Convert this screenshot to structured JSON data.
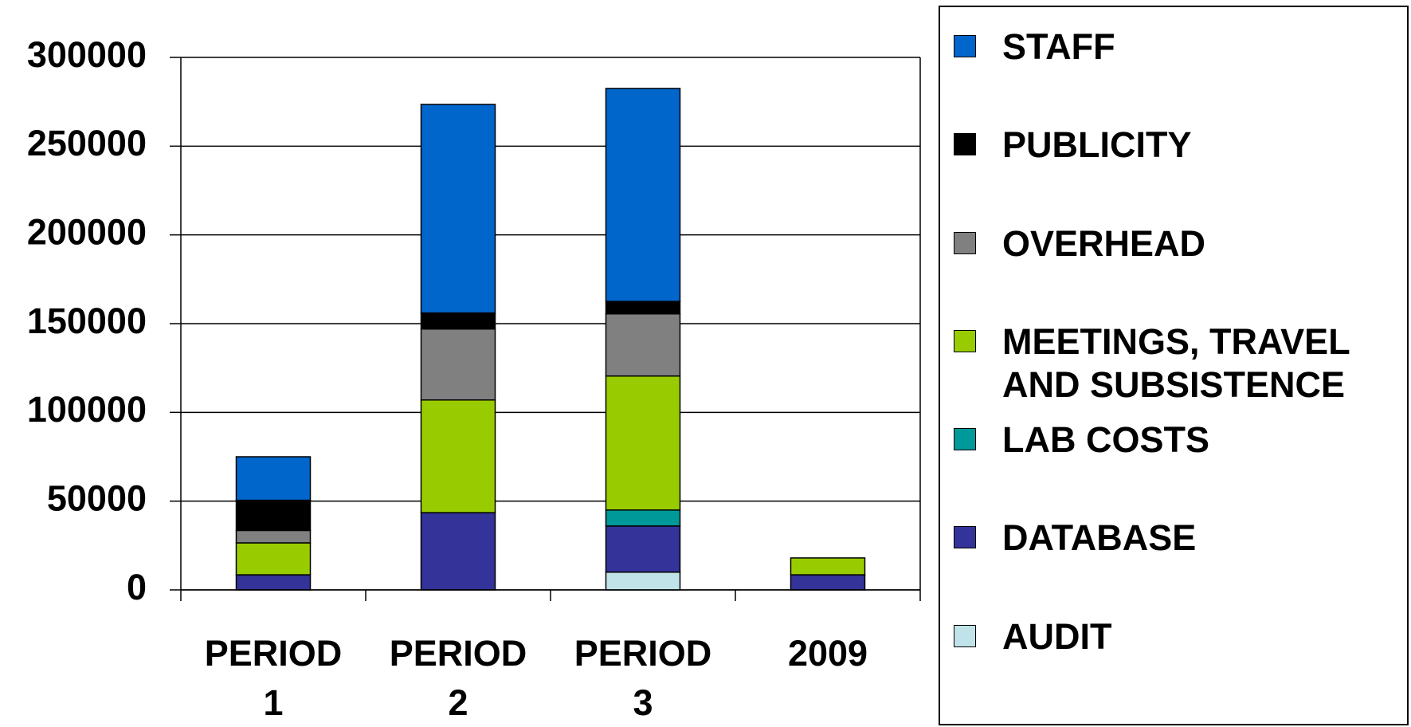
{
  "chart_data": {
    "type": "stacked_bar",
    "categories": [
      "PERIOD 1",
      "PERIOD 2",
      "PERIOD 3",
      "2009"
    ],
    "series": [
      {
        "name": "AUDIT",
        "color": "#bfe3e8",
        "values": [
          null,
          null,
          10000,
          null
        ]
      },
      {
        "name": "DATABASE",
        "color": "#333399",
        "values": [
          8500,
          43500,
          26000,
          8500
        ]
      },
      {
        "name": "LAB COSTS",
        "color": "#009999",
        "values": [
          null,
          null,
          9000,
          null
        ]
      },
      {
        "name": "MEETINGS, TRAVEL AND SUBSISTENCE",
        "color": "#99cc00",
        "values": [
          18000,
          63500,
          75500,
          9500
        ]
      },
      {
        "name": "OVERHEAD",
        "color": "#808080",
        "values": [
          7000,
          40000,
          35000,
          null
        ]
      },
      {
        "name": "PUBLICITY",
        "color": "#000000",
        "values": [
          17000,
          9000,
          7000,
          null
        ]
      },
      {
        "name": "STAFF",
        "color": "#0066cc",
        "values": [
          24500,
          117500,
          120000,
          null
        ]
      }
    ],
    "ylim": [
      0,
      300000
    ],
    "yticks": [
      0,
      50000,
      100000,
      150000,
      200000,
      250000,
      300000
    ],
    "grid": true
  }
}
